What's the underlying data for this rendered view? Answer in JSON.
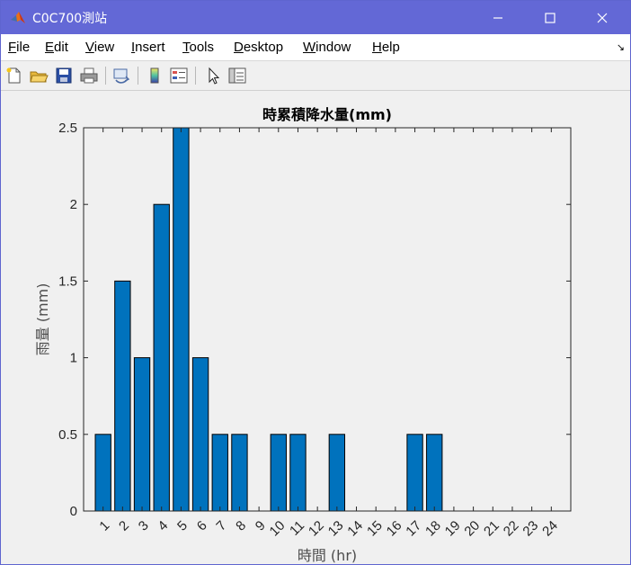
{
  "window": {
    "title": "C0C700測站",
    "colors": {
      "titlebar": "#6368d6",
      "bar": "#0072bd"
    }
  },
  "menu": {
    "items": [
      {
        "id": "file",
        "underline": "F",
        "rest": "ile"
      },
      {
        "id": "edit",
        "underline": "E",
        "rest": "dit"
      },
      {
        "id": "view",
        "underline": "V",
        "rest": "iew"
      },
      {
        "id": "insert",
        "underline": "I",
        "rest": "nsert"
      },
      {
        "id": "tools",
        "underline": "T",
        "rest": "ools"
      },
      {
        "id": "desktop",
        "underline": "D",
        "rest": "esktop"
      },
      {
        "id": "window",
        "underline": "W",
        "rest": "indow"
      },
      {
        "id": "help",
        "underline": "H",
        "rest": "elp"
      }
    ],
    "dock_arrow": "↘"
  },
  "toolbar": {
    "icons": [
      "new-figure-icon",
      "open-file-icon",
      "save-icon",
      "print-icon",
      "link-plot-icon",
      "colorbar-icon",
      "legend-icon",
      "pointer-icon",
      "property-inspector-icon"
    ]
  },
  "chart_data": {
    "type": "bar",
    "title": "時累積降水量(mm)",
    "xlabel": "時間 (hr)",
    "ylabel": "雨量 (mm)",
    "categories": [
      "1",
      "2",
      "3",
      "4",
      "5",
      "6",
      "7",
      "8",
      "9",
      "10",
      "11",
      "12",
      "13",
      "14",
      "15",
      "16",
      "17",
      "18",
      "19",
      "20",
      "21",
      "22",
      "23",
      "24"
    ],
    "values": [
      0.5,
      1.5,
      1,
      2,
      2.5,
      1,
      0.5,
      0.5,
      0,
      0.5,
      0.5,
      0,
      0.5,
      0,
      0,
      0,
      0.5,
      0.5,
      0,
      0,
      0,
      0,
      0,
      0
    ],
    "ylim": [
      0,
      2.5
    ],
    "yticks": [
      "0",
      "0.5",
      "1",
      "1.5",
      "2",
      "2.5"
    ],
    "ytick_values": [
      0,
      0.5,
      1,
      1.5,
      2,
      2.5
    ],
    "grid": false,
    "bar_color": "#0072bd"
  }
}
